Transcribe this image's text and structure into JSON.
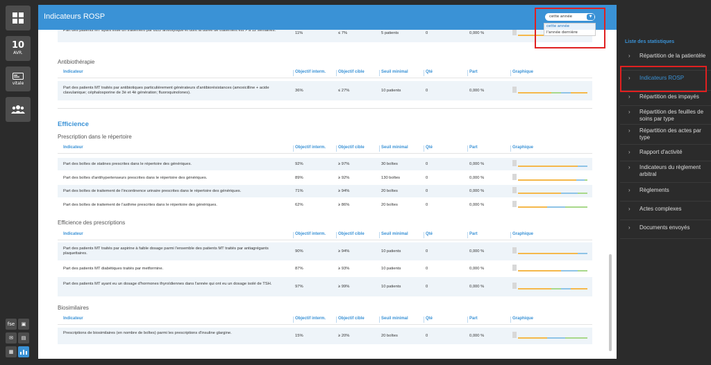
{
  "leftbar": {
    "date_day": "10",
    "date_month": "AVR.",
    "vitale_label": "vitale",
    "fse_label": "fse"
  },
  "header": {
    "title": "Indicateurs ROSP",
    "year_select": {
      "value": "cette année",
      "options": [
        "cette année",
        "l'année dernière"
      ]
    }
  },
  "columns": [
    "Indicateur",
    "Objectif interm.",
    "Objectif cible",
    "Seuil minimal",
    "Qté",
    "Part",
    "Graphique"
  ],
  "top_row": {
    "indicator": "Part des patients MT ayant initié un traitement par BZD anxiolytique et dont la durée de traitement est > à 12 semaines.",
    "obj_interm": "11%",
    "obj_cible": "≤ 7%",
    "seuil": "5 patients",
    "qte": "0",
    "part": "0,000 %"
  },
  "sections": {
    "antibio": {
      "title": "Antibiothérapie",
      "rows": [
        {
          "indicator": "Part des patients MT traités par antibiotiques particulièrement générateurs d'antibiorésistances (amoxicilline + acide clavulanique; céphalosporine de 3è et 4è génération; fluoroquinolones).",
          "obj_interm": "36%",
          "obj_cible": "≤ 27%",
          "seuil": "10 patients",
          "qte": "0",
          "part": "0,000 %"
        }
      ]
    },
    "efficience_title": "Efficience",
    "repertoire": {
      "title": "Prescription dans le répertoire",
      "rows": [
        {
          "indicator": "Part des boîtes de statines prescrites dans le répertoire des génériques.",
          "obj_interm": "92%",
          "obj_cible": "≥ 97%",
          "seuil": "30 boîtes",
          "qte": "0",
          "part": "0,000 %"
        },
        {
          "indicator": "Part des boîtes d'antihypertenseurs prescrites dans le répertoire des génériques.",
          "obj_interm": "89%",
          "obj_cible": "≥ 92%",
          "seuil": "130 boîtes",
          "qte": "0",
          "part": "0,000 %"
        },
        {
          "indicator": "Part des boîtes de traitement de l'incontinence urinaire prescrites dans le répertoire des génériques.",
          "obj_interm": "71%",
          "obj_cible": "≥ 94%",
          "seuil": "20 boîtes",
          "qte": "0",
          "part": "0,000 %"
        },
        {
          "indicator": "Part des boîtes de traitement de l'asthme prescrites dans le répertoire des génériques.",
          "obj_interm": "62%",
          "obj_cible": "≥ 86%",
          "seuil": "20 boîtes",
          "qte": "0",
          "part": "0,000 %"
        }
      ]
    },
    "prescriptions": {
      "title": "Efficience des prescriptions",
      "rows": [
        {
          "indicator": "Part des patients MT traités par aspirine à faible dosage parmi l'ensemble des patients MT traités par antiagrégants plaquettaires.",
          "obj_interm": "90%",
          "obj_cible": "≥ 94%",
          "seuil": "10 patients",
          "qte": "0",
          "part": "0,000 %"
        },
        {
          "indicator": "Part des patients MT diabétiques traités par metformine.",
          "obj_interm": "87%",
          "obj_cible": "≥ 93%",
          "seuil": "10 patients",
          "qte": "0",
          "part": "0,000 %"
        },
        {
          "indicator": "Part des patients MT ayant eu un dosage d'hormones thyroïdiennes dans l'année qui ont eu un dosage isolé de TSH.",
          "obj_interm": "97%",
          "obj_cible": "≥ 99%",
          "seuil": "10 patients",
          "qte": "0",
          "part": "0,000 %"
        }
      ]
    },
    "biosimilaires": {
      "title": "Biosimilaires",
      "rows": [
        {
          "indicator": "Prescriptions de biosimilaires (en nombre de boîtes) parmi les prescriptions d'insuline glargine.",
          "obj_interm": "15%",
          "obj_cible": "≥ 20%",
          "seuil": "20 boîtes",
          "qte": "0",
          "part": "0,000 %"
        }
      ]
    }
  },
  "right_panel": {
    "title": "Liste des statistiques",
    "items": [
      "Répartition de la patientèle",
      "Indicateurs ROSP",
      "Répartition des impayés",
      "Répartition des feuilles de soins par type",
      "Répartition des actes par type",
      "Rapport d'activité",
      "Indicateurs du règlement arbitral",
      "Règlements",
      "Actes complexes",
      "Documents envoyés"
    ],
    "active_index": 1
  },
  "colors": {
    "accent": "#3a92d6",
    "orange": "#f5b84a",
    "green": "#a8d88a",
    "blue": "#8ec3e6",
    "highlight": "#e02020"
  }
}
